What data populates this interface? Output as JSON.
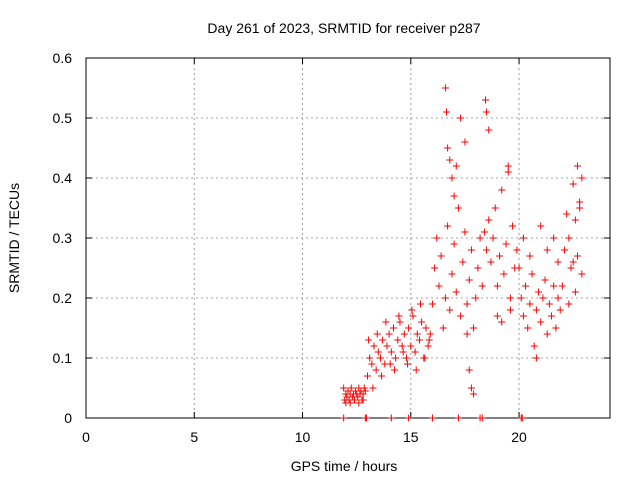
{
  "chart_data": {
    "type": "scatter",
    "title": "Day 261 of 2023, SRMTID for receiver p287",
    "xlabel": "GPS time / hours",
    "ylabel": "SRMTID / TECUs",
    "xlim": [
      0,
      24.2
    ],
    "ylim": [
      0,
      0.6
    ],
    "xticks": [
      0,
      5,
      10,
      15,
      20
    ],
    "xtick_labels": [
      "0",
      "5",
      "10",
      "15",
      "20"
    ],
    "yticks": [
      0,
      0.1,
      0.2,
      0.3,
      0.4,
      0.5,
      0.6
    ],
    "ytick_labels": [
      "0",
      "0.1",
      "0.2",
      "0.3",
      "0.4",
      "0.5",
      "0.6"
    ],
    "grid": true,
    "marker": "+",
    "color": "#ff0000",
    "series": [
      {
        "name": "SRMTID",
        "x": [
          11.9,
          11.95,
          12.0,
          12.05,
          12.1,
          12.15,
          12.2,
          12.25,
          12.3,
          12.35,
          12.4,
          12.45,
          12.5,
          12.55,
          12.6,
          12.65,
          12.7,
          12.75,
          12.8,
          12.85,
          12.9,
          12.0,
          12.2,
          12.4,
          12.6,
          12.8,
          13.0,
          13.1,
          13.2,
          13.3,
          13.4,
          13.5,
          13.6,
          13.7,
          13.8,
          13.9,
          14.0,
          14.1,
          14.2,
          14.3,
          14.4,
          14.5,
          14.6,
          14.7,
          14.8,
          14.9,
          15.0,
          15.1,
          15.2,
          15.3,
          15.4,
          15.5,
          15.6,
          15.7,
          15.8,
          15.9,
          13.05,
          13.25,
          13.45,
          13.65,
          13.85,
          14.05,
          14.25,
          14.45,
          14.65,
          14.85,
          15.05,
          15.25,
          15.45,
          15.65,
          15.85,
          16.0,
          16.1,
          16.2,
          16.3,
          16.4,
          16.5,
          16.6,
          16.7,
          16.8,
          16.9,
          17.0,
          17.1,
          17.2,
          17.3,
          17.4,
          17.5,
          17.6,
          17.7,
          17.8,
          17.9,
          18.0,
          18.1,
          18.2,
          16.6,
          16.65,
          16.7,
          16.8,
          16.9,
          17.0,
          17.1,
          17.3,
          17.5,
          17.6,
          17.7,
          17.8,
          17.9,
          18.3,
          18.4,
          18.5,
          18.6,
          18.7,
          18.8,
          18.9,
          19.0,
          19.1,
          19.2,
          19.3,
          19.4,
          19.5,
          19.6,
          19.7,
          19.8,
          19.9,
          18.45,
          18.5,
          18.6,
          19.0,
          19.2,
          19.5,
          19.6,
          20.0,
          20.1,
          20.2,
          20.3,
          20.4,
          20.5,
          20.6,
          20.7,
          20.8,
          20.9,
          21.0,
          21.1,
          21.2,
          21.3,
          21.4,
          21.5,
          21.6,
          21.7,
          21.8,
          21.9,
          20.2,
          20.5,
          20.8,
          21.0,
          21.3,
          21.6,
          21.8,
          22.0,
          22.1,
          22.2,
          22.3,
          22.4,
          22.5,
          22.6,
          22.7,
          22.8,
          22.9,
          22.3,
          22.5,
          22.7,
          22.9,
          22.6,
          22.8,
          11.9,
          12.9,
          12.95,
          14.1,
          14.9,
          16.0,
          17.2,
          18.2,
          18.3,
          20.1,
          20.15
        ],
        "y": [
          0.05,
          0.03,
          0.04,
          0.035,
          0.045,
          0.03,
          0.04,
          0.05,
          0.035,
          0.04,
          0.03,
          0.045,
          0.04,
          0.035,
          0.05,
          0.04,
          0.045,
          0.03,
          0.04,
          0.05,
          0.045,
          0.025,
          0.025,
          0.03,
          0.025,
          0.03,
          0.07,
          0.1,
          0.09,
          0.12,
          0.08,
          0.11,
          0.1,
          0.13,
          0.09,
          0.12,
          0.14,
          0.11,
          0.15,
          0.1,
          0.13,
          0.16,
          0.12,
          0.14,
          0.1,
          0.15,
          0.12,
          0.17,
          0.11,
          0.14,
          0.13,
          0.16,
          0.1,
          0.15,
          0.12,
          0.14,
          0.13,
          0.05,
          0.14,
          0.07,
          0.16,
          0.09,
          0.08,
          0.17,
          0.11,
          0.09,
          0.18,
          0.08,
          0.19,
          0.1,
          0.13,
          0.19,
          0.25,
          0.3,
          0.22,
          0.27,
          0.15,
          0.2,
          0.32,
          0.18,
          0.24,
          0.29,
          0.21,
          0.35,
          0.17,
          0.26,
          0.31,
          0.19,
          0.23,
          0.28,
          0.15,
          0.2,
          0.25,
          0.3,
          0.55,
          0.51,
          0.45,
          0.43,
          0.4,
          0.37,
          0.42,
          0.5,
          0.46,
          0.14,
          0.08,
          0.05,
          0.04,
          0.22,
          0.31,
          0.28,
          0.33,
          0.26,
          0.3,
          0.35,
          0.22,
          0.27,
          0.38,
          0.24,
          0.29,
          0.41,
          0.2,
          0.32,
          0.25,
          0.28,
          0.53,
          0.51,
          0.48,
          0.17,
          0.16,
          0.42,
          0.18,
          0.25,
          0.2,
          0.17,
          0.22,
          0.15,
          0.19,
          0.24,
          0.12,
          0.18,
          0.21,
          0.16,
          0.2,
          0.23,
          0.14,
          0.19,
          0.17,
          0.22,
          0.15,
          0.2,
          0.18,
          0.3,
          0.27,
          0.1,
          0.32,
          0.28,
          0.3,
          0.26,
          0.22,
          0.28,
          0.34,
          0.3,
          0.25,
          0.39,
          0.33,
          0.27,
          0.36,
          0.24,
          0.19,
          0.26,
          0.42,
          0.4,
          0.21,
          0.35,
          0.0,
          0.0,
          0.0,
          0.0,
          0.0,
          0.0,
          0.0,
          0.0,
          0.0,
          0.0,
          0.0
        ]
      }
    ]
  }
}
